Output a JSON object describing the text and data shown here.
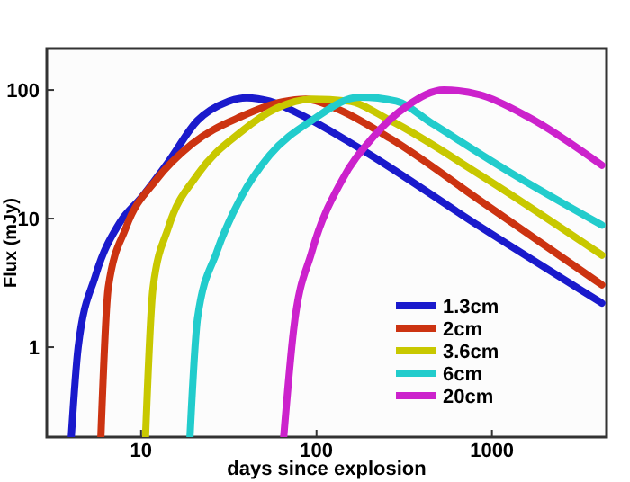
{
  "chart_data": {
    "type": "line",
    "xlabel": "days since explosion",
    "ylabel": "Flux (mJy)",
    "log": "xy",
    "xlim": [
      2.9,
      4500
    ],
    "ylim": [
      0.2,
      210
    ],
    "xticks": [
      10,
      100,
      1000
    ],
    "yticks": [
      1,
      10,
      100
    ],
    "grid": false,
    "legend": "bottom right",
    "marker": "none",
    "line_style": "solid",
    "series": [
      {
        "name": "1.3cm",
        "color": "#1a1acc",
        "x": [
          4.0,
          4.38,
          5.5,
          7.6,
          10,
          14.3,
          21,
          31,
          40,
          54,
          80,
          177,
          850,
          4230
        ],
        "values": [
          0.2,
          1.0,
          3.6,
          9.4,
          14.5,
          27.6,
          58,
          81,
          87,
          82,
          65,
          35,
          8.7,
          2.2
        ]
      },
      {
        "name": "2cm",
        "color": "#cc3311",
        "x": [
          5.9,
          6.5,
          8.2,
          12.2,
          19.5,
          37,
          64,
          87,
          129,
          263,
          850,
          4230
        ],
        "values": [
          0.2,
          2.9,
          8.5,
          20,
          38,
          62,
          81,
          85,
          72,
          42,
          13.9,
          3.05
        ]
      },
      {
        "name": "3.6cm",
        "color": "#c8c800",
        "x": [
          10.6,
          11.7,
          14.3,
          21,
          37,
          59,
          94,
          151,
          263,
          850,
          4230
        ],
        "values": [
          0.2,
          2.9,
          8.5,
          22,
          47,
          72,
          85,
          82,
          58,
          22,
          5.2
        ]
      },
      {
        "name": "6cm",
        "color": "#22cccc",
        "x": [
          19,
          21,
          27,
          37,
          54,
          94,
          177,
          284,
          455,
          1260,
          4230
        ],
        "values": [
          0.2,
          1.7,
          5.5,
          14.5,
          31,
          58,
          88,
          82,
          55,
          23,
          8.9
        ]
      },
      {
        "name": "20cm",
        "color": "#cc22cc",
        "x": [
          65,
          74,
          94,
          140,
          207,
          332,
          532,
          850,
          1600,
          4230
        ],
        "values": [
          0.2,
          1.36,
          5.5,
          20,
          42,
          76,
          100,
          92,
          62,
          26
        ]
      }
    ]
  }
}
